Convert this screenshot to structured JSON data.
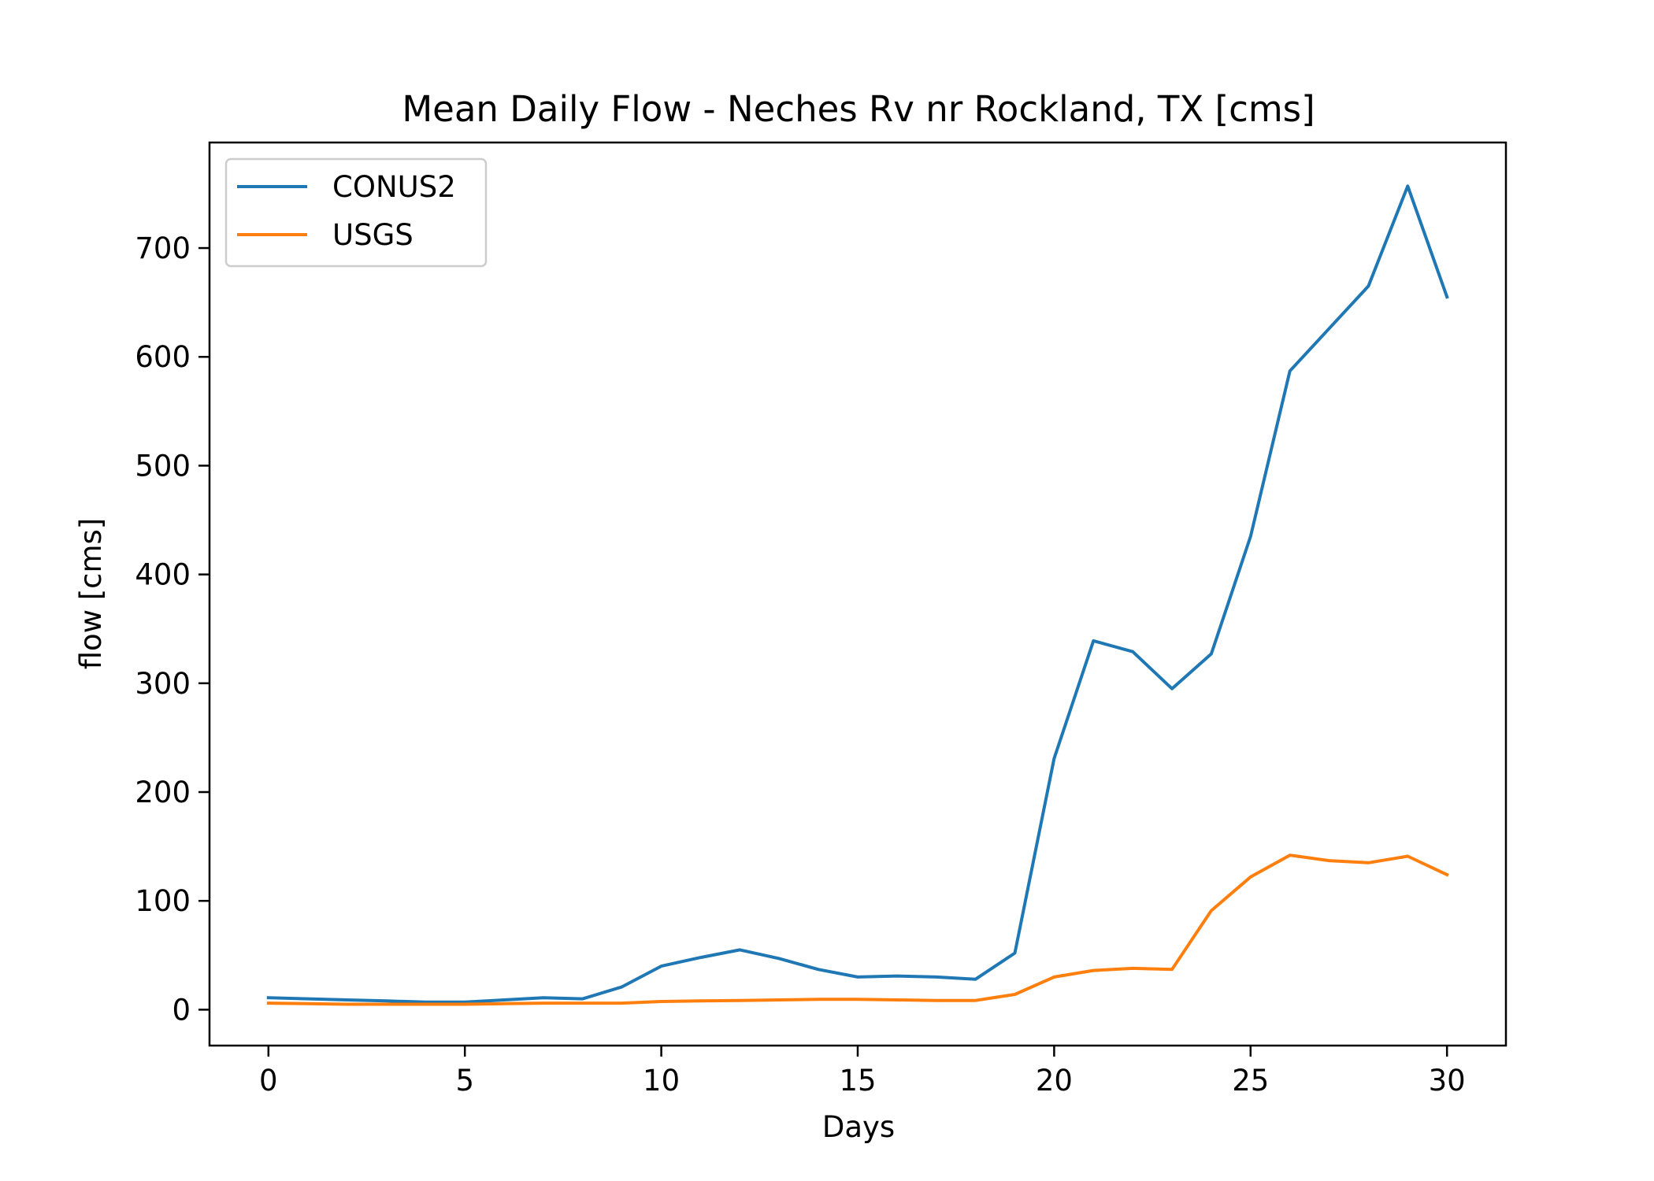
{
  "chart_data": {
    "type": "line",
    "title": "Mean Daily Flow - Neches Rv nr Rockland, TX [cms]",
    "xlabel": "Days",
    "ylabel": "flow [cms]",
    "xlim": [
      -1.5,
      31.5
    ],
    "ylim": [
      -33,
      797
    ],
    "xticks": [
      0,
      5,
      10,
      15,
      20,
      25,
      30
    ],
    "yticks": [
      0,
      100,
      200,
      300,
      400,
      500,
      600,
      700
    ],
    "grid": false,
    "legend_position": "top-left",
    "x": [
      0,
      1,
      2,
      3,
      4,
      5,
      6,
      7,
      8,
      9,
      10,
      11,
      12,
      13,
      14,
      15,
      16,
      17,
      18,
      19,
      20,
      21,
      22,
      23,
      24,
      25,
      26,
      27,
      28,
      29,
      30
    ],
    "series": [
      {
        "name": "CONUS2",
        "color": "#1f77b4",
        "values": [
          11,
          10,
          9,
          8,
          7,
          7,
          9,
          11,
          10,
          21,
          40,
          48,
          55,
          47,
          37,
          30,
          31,
          30,
          28,
          52,
          231,
          339,
          329,
          295,
          327,
          435,
          587,
          626,
          665,
          757,
          655
        ]
      },
      {
        "name": "USGS",
        "color": "#ff7f0e",
        "values": [
          6,
          5.5,
          5,
          5,
          5,
          5,
          5.5,
          6,
          6,
          6,
          7.5,
          8,
          8.5,
          9,
          9.5,
          9.5,
          9,
          8.5,
          8.5,
          14,
          30,
          36,
          38,
          37,
          91,
          122,
          142,
          137,
          135,
          141,
          124
        ]
      }
    ]
  }
}
